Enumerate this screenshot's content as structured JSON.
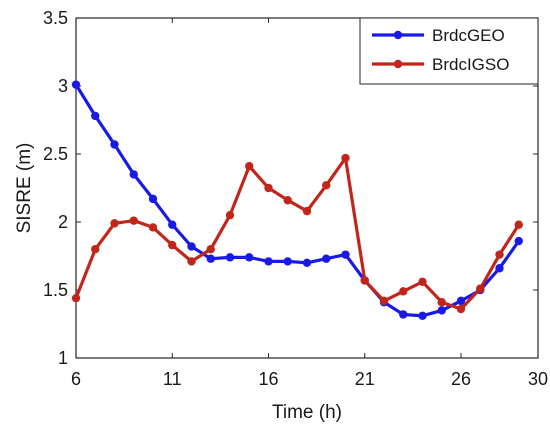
{
  "chart_data": {
    "type": "line",
    "xlabel": "Time (h)",
    "ylabel": "SISRE (m)",
    "xlim": [
      6,
      30
    ],
    "ylim": [
      1,
      3.5
    ],
    "xticks": [
      6,
      11,
      16,
      21,
      26,
      30
    ],
    "yticks": [
      1,
      1.5,
      2,
      2.5,
      3,
      3.5
    ],
    "xtick_labels": [
      "6",
      "11",
      "16",
      "21",
      "26",
      "30"
    ],
    "ytick_labels": [
      "1",
      "1.5",
      "2",
      "2.5",
      "3",
      "3.5"
    ],
    "grid": false,
    "legend_position": "top-right",
    "x": [
      6,
      7,
      8,
      9,
      10,
      11,
      12,
      13,
      14,
      15,
      16,
      17,
      18,
      19,
      20,
      21,
      22,
      23,
      24,
      25,
      26,
      27,
      28,
      29
    ],
    "series": [
      {
        "name": "BrdcGEO",
        "color": "#1a1ae6",
        "values": [
          3.01,
          2.78,
          2.57,
          2.35,
          2.17,
          1.98,
          1.82,
          1.73,
          1.74,
          1.74,
          1.71,
          1.71,
          1.7,
          1.73,
          1.76,
          1.57,
          1.41,
          1.32,
          1.31,
          1.35,
          1.42,
          1.5,
          1.66,
          1.86
        ]
      },
      {
        "name": "BrdcIGSO",
        "color": "#c0261a",
        "values": [
          1.44,
          1.8,
          1.99,
          2.01,
          1.96,
          1.83,
          1.71,
          1.8,
          2.05,
          2.41,
          2.25,
          2.16,
          2.08,
          2.27,
          2.47,
          1.57,
          1.42,
          1.49,
          1.56,
          1.41,
          1.36,
          1.51,
          1.76,
          1.98
        ]
      }
    ]
  }
}
